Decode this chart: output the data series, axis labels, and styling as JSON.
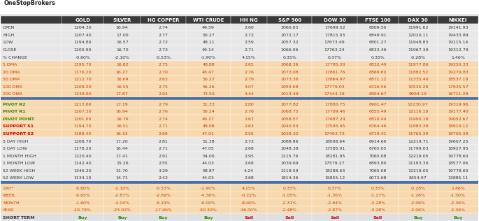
{
  "title": "OneStopBrokers",
  "columns": [
    "",
    "GOLD",
    "SILVER",
    "HG COPPER",
    "WTI CRUDE",
    "HH NG",
    "S&P 500",
    "DOW 30",
    "FTSE 100",
    "DAX 30",
    "NIKKEI"
  ],
  "rows": [
    {
      "label": "OPEN",
      "values": [
        "1204.30",
        "16.94",
        "2.74",
        "49.59",
        "2.60",
        "2060.03",
        "17699.52",
        "6809.50",
        "11991.62",
        "19141.93"
      ]
    },
    {
      "label": "HIGH",
      "values": [
        "1207.40",
        "17.00",
        "2.77",
        "50.27",
        "2.72",
        "2072.17",
        "17815.03",
        "6849.91",
        "12020.11",
        "19433.89"
      ]
    },
    {
      "label": "LOW",
      "values": [
        "1194.80",
        "16.57",
        "2.72",
        "48.11",
        "2.59",
        "2057.32",
        "17673.49",
        "6801.27",
        "11948.83",
        "19115.14"
      ]
    },
    {
      "label": "CLOSE",
      "values": [
        "1200.90",
        "16.70",
        "2.73",
        "49.14",
        "2.71",
        "2066.96",
        "17763.24",
        "6833.46",
        "11967.39",
        "19312.79"
      ]
    },
    {
      "label": "% CHANGE",
      "values": [
        "-0.60%",
        "-2.10%",
        "-0.53%",
        "-1.90%",
        "4.15%",
        "0.35%",
        "0.37%",
        "0.35%",
        "-0.28%",
        "1.46%"
      ]
    }
  ],
  "dma_rows": [
    {
      "label": "5 DMA",
      "values": [
        "1195.70",
        "16.82",
        "2.75",
        "48.88",
        "2.65",
        "2068.36",
        "17785.30",
        "6832.49",
        "11977.86",
        "19250.33"
      ]
    },
    {
      "label": "20 DMA",
      "values": [
        "1176.20",
        "16.27",
        "2.70",
        "48.47",
        "2.76",
        "2073.08",
        "17861.76",
        "6869.60",
        "11882.52",
        "19279.83"
      ]
    },
    {
      "label": "50 DMA",
      "values": [
        "1212.70",
        "16.69",
        "2.63",
        "50.27",
        "2.79",
        "2073.36",
        "17864.97",
        "6871.12",
        "11335.40",
        "18537.18"
      ]
    },
    {
      "label": "100 DMA",
      "values": [
        "1209.20",
        "16.55",
        "2.75",
        "56.26",
        "3.07",
        "2059.68",
        "17779.03",
        "6726.56",
        "10535.28",
        "17925.57"
      ]
    },
    {
      "label": "200 DMA",
      "values": [
        "1238.90",
        "17.87",
        "2.94",
        "73.50",
        "3.44",
        "2013.49",
        "17344.19",
        "6894.67",
        "9994.10",
        "16711.29"
      ]
    }
  ],
  "pivot_rows": [
    {
      "label": "PIVOT R2",
      "values": [
        "1213.60",
        "17.19",
        "2.79",
        "51.33",
        "2.80",
        "2077.82",
        "17880.75",
        "6901.47",
        "12230.97",
        "19319.96"
      ],
      "color": "green"
    },
    {
      "label": "PIVOT R1",
      "values": [
        "1207.30",
        "16.94",
        "2.76",
        "50.24",
        "2.76",
        "2068.75",
        "17789.46",
        "6855.49",
        "12116.18",
        "19177.40"
      ],
      "color": "green"
    },
    {
      "label": "PIVOT POINT",
      "values": [
        "1201.00",
        "16.76",
        "2.74",
        "49.17",
        "2.67",
        "2058.57",
        "17687.24",
        "6810.44",
        "11990.18",
        "19052.67"
      ],
      "color": "green"
    },
    {
      "label": "SUPPORT S1",
      "values": [
        "1194.70",
        "16.51",
        "2.71",
        "48.08",
        "2.63",
        "2040.50",
        "17595.95",
        "6764.46",
        "11883.39",
        "18910.12"
      ],
      "color": "red"
    },
    {
      "label": "SUPPORT S2",
      "values": [
        "1188.40",
        "16.33",
        "2.69",
        "47.01",
        "2.55",
        "2039.32",
        "17493.73",
        "6719.41",
        "11765.39",
        "18705.39"
      ],
      "color": "red"
    }
  ],
  "range_rows": [
    {
      "label": "5 DAY HIGH",
      "values": [
        "1208.70",
        "17.20",
        "2.81",
        "51.38",
        "2.72",
        "2088.96",
        "18008.64",
        "6914.60",
        "12219.71",
        "19607.25"
      ]
    },
    {
      "label": "5 DAY LOW",
      "values": [
        "1178.20",
        "16.44",
        "2.71",
        "47.05",
        "2.68",
        "2048.38",
        "17585.01",
        "6765.05",
        "11799.03",
        "18927.95"
      ]
    },
    {
      "label": "1 MONTH HIGH",
      "values": [
        "1220.40",
        "17.41",
        "2.91",
        "54.00",
        "2.95",
        "2115.76",
        "18281.95",
        "7065.08",
        "12219.05",
        "19778.60"
      ]
    },
    {
      "label": "1 MONTH LOW",
      "values": [
        "1142.40",
        "15.26",
        "2.55",
        "44.03",
        "2.68",
        "2039.69",
        "17579.27",
        "6893.80",
        "11193.30",
        "18577.06"
      ]
    },
    {
      "label": "52 WEEK HIGH",
      "values": [
        "1346.20",
        "21.70",
        "3.29",
        "98.87",
        "4.24",
        "2119.59",
        "18288.63",
        "7065.08",
        "12219.05",
        "19778.60"
      ]
    },
    {
      "label": "52 WEEK LOW",
      "values": [
        "1134.10",
        "14.71",
        "2.42",
        "44.03",
        "2.68",
        "1814.36",
        "15855.12",
        "6072.68",
        "8354.97",
        "13885.11"
      ]
    }
  ],
  "perf_rows": [
    {
      "label": "DAY*",
      "values": [
        "-0.60%",
        "-2.10%",
        "-0.53%",
        "-1.90%",
        "4.15%",
        "0.35%",
        "0.37%",
        "0.35%",
        "-0.28%",
        "1.46%"
      ]
    },
    {
      "label": "WEEK",
      "values": [
        "-0.65%",
        "-2.87%",
        "-2.69%",
        "-4.36%",
        "-0.22%",
        "-1.05%",
        "-1.36%",
        "-1.17%",
        "-1.26%",
        "-1.50%"
      ]
    },
    {
      "label": "MONTH",
      "values": [
        "-1.60%",
        "-4.04%",
        "-6.19%",
        "-9.00%",
        "-8.00%",
        "-2.31%",
        "-2.84%",
        "-3.28%",
        "-2.06%",
        "-2.36%"
      ]
    },
    {
      "label": "YEAR",
      "values": [
        "-10.79%",
        "-23.02%",
        "-17.00%",
        "-50.30%",
        "-36.00%",
        "-2.48%",
        "-2.87%",
        "-3.28%",
        "-2.06%",
        "-2.36%"
      ]
    }
  ],
  "signal_row": {
    "label": "SHORT TERM",
    "values": [
      "Buy",
      "Buy",
      "Buy",
      "Buy",
      "Sell",
      "Sell",
      "Sell",
      "Sell",
      "Buy",
      "Buy"
    ],
    "colors": [
      "#2e8b00",
      "#2e8b00",
      "#2e8b00",
      "#2e8b00",
      "#cc0000",
      "#cc0000",
      "#cc0000",
      "#cc0000",
      "#2e8b00",
      "#2e8b00"
    ]
  },
  "header_bg": "#3a3a3a",
  "header_fg": "#ffffff",
  "row_bg_gray": "#e8e8e8",
  "row_bg_peach": "#f8d9b0",
  "section_divider_bg": "#4a6fa5",
  "signal_bg": "#e0e0e0",
  "ohlc_text": "#333333",
  "dma_text": "#c04000",
  "pivot_green": "#2e8b00",
  "pivot_red": "#cc0000",
  "pivot_vals": "#c04000"
}
